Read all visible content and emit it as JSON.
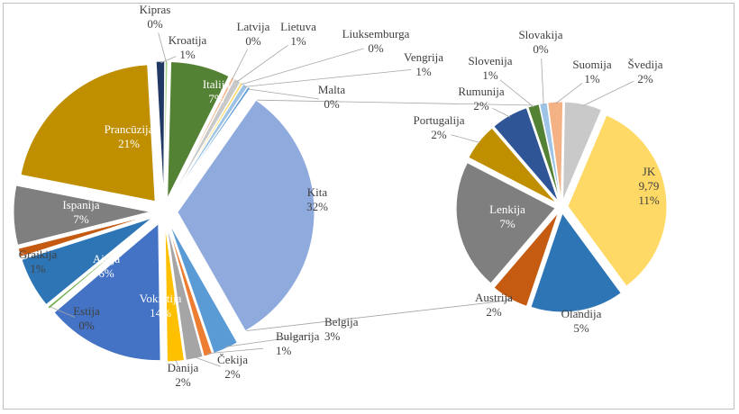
{
  "chart_data": {
    "type": "pie",
    "subtype": "pie-of-pie",
    "title": "",
    "legend": "none",
    "main_pie": {
      "slices": [
        {
          "label": "Kita",
          "value_label": "32%",
          "value": 32,
          "color": "#8faadc"
        },
        {
          "label": "Belgija",
          "value_label": "3%",
          "value": 3,
          "color": "#5b9bd5"
        },
        {
          "label": "Bulgarija",
          "value_label": "1%",
          "value": 1,
          "color": "#ed7d31"
        },
        {
          "label": "Čekija",
          "value_label": "2%",
          "value": 2,
          "color": "#a5a5a5"
        },
        {
          "label": "Danija",
          "value_label": "2%",
          "value": 2,
          "color": "#ffc000"
        },
        {
          "label": "Vokietija",
          "value_label": "14%",
          "value": 14,
          "color": "#4472c4"
        },
        {
          "label": "Estija",
          "value_label": "0%",
          "value": 0.3,
          "color": "#70ad47"
        },
        {
          "label": "Airija",
          "value_label": "6%",
          "value": 6,
          "color": "#2e75b6"
        },
        {
          "label": "Graikija",
          "value_label": "1%",
          "value": 1,
          "color": "#c55a11"
        },
        {
          "label": "Ispanija",
          "value_label": "7%",
          "value": 7,
          "color": "#7f7f7f"
        },
        {
          "label": "Prancūzija",
          "value_label": "21%",
          "value": 21,
          "color": "#bf8f00"
        },
        {
          "label": "Kroatija",
          "value_label": "1%",
          "value": 1,
          "color": "#1f3864"
        },
        {
          "label": "Kipras",
          "value_label": "0%",
          "value": 0.3,
          "color": "#a9d18e"
        },
        {
          "label": "Italija",
          "value_label": "7%",
          "value": 7,
          "color": "#548235"
        },
        {
          "label": "Latvija",
          "value_label": "0%",
          "value": 0.3,
          "color": "#f4b183"
        },
        {
          "label": "Lietuva",
          "value_label": "1%",
          "value": 0.8,
          "color": "#c9c9c9"
        },
        {
          "label": "Liuksemburga",
          "value_label": "0%",
          "value": 0.3,
          "color": "#ffd966"
        },
        {
          "label": "Vengrija",
          "value_label": "1%",
          "value": 0.6,
          "color": "#9dc3e6"
        },
        {
          "label": "Malta",
          "value_label": "0%",
          "value": 0.3,
          "color": "#5b9bd5"
        }
      ]
    },
    "secondary_pie": {
      "slices": [
        {
          "label": "JK",
          "value_text": "9,79",
          "value_label": "11%",
          "value": 11,
          "color": "#ffd966"
        },
        {
          "label": "Olandija",
          "value_label": "5%",
          "value": 5,
          "color": "#2e75b6"
        },
        {
          "label": "Austrija",
          "value_label": "2%",
          "value": 2,
          "color": "#c55a11"
        },
        {
          "label": "Lenkija",
          "value_label": "7%",
          "value": 7,
          "color": "#7f7f7f"
        },
        {
          "label": "Portugalija",
          "value_label": "2%",
          "value": 2,
          "color": "#bf8f00"
        },
        {
          "label": "Rumunija",
          "value_label": "2%",
          "value": 2,
          "color": "#2f5597"
        },
        {
          "label": "Slovenija",
          "value_label": "1%",
          "value": 0.6,
          "color": "#548235"
        },
        {
          "label": "Slovakija",
          "value_label": "0%",
          "value": 0.4,
          "color": "#9dc3e6"
        },
        {
          "label": "Suomija",
          "value_label": "1%",
          "value": 0.8,
          "color": "#f4b183"
        },
        {
          "label": "Švedija",
          "value_label": "2%",
          "value": 2,
          "color": "#c9c9c9"
        }
      ]
    }
  }
}
